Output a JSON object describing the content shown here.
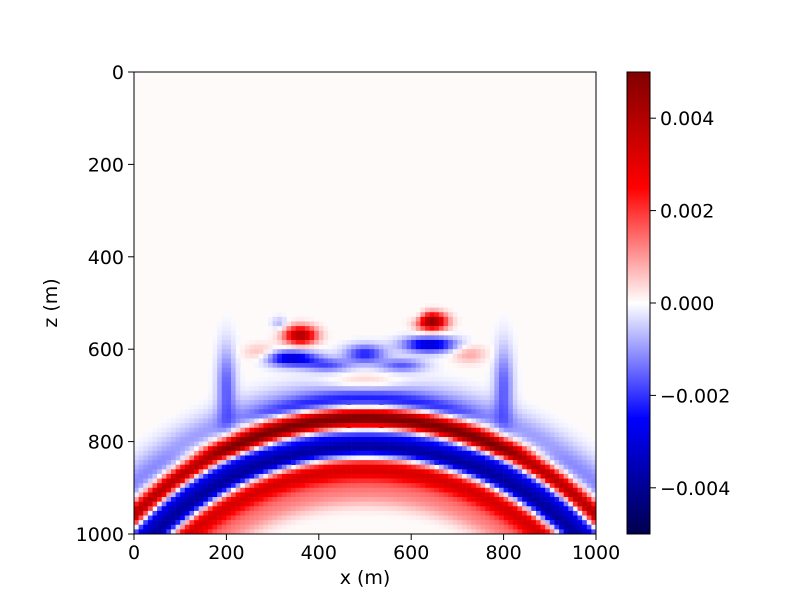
{
  "chart_data": {
    "type": "heatmap",
    "title": "",
    "xlabel": "x (m)",
    "ylabel": "z (m)",
    "xlim": [
      0,
      1000
    ],
    "zlim": [
      0,
      1000
    ],
    "z_axis_inverted": true,
    "x_ticks": [
      0,
      200,
      400,
      600,
      800,
      1000
    ],
    "x_tick_labels": [
      "0",
      "200",
      "400",
      "600",
      "800",
      "1000"
    ],
    "z_ticks": [
      0,
      200,
      400,
      600,
      800,
      1000
    ],
    "z_tick_labels": [
      "0",
      "200",
      "400",
      "600",
      "800",
      "1000"
    ],
    "colormap": "seismic",
    "colormap_stops": [
      "#00004d",
      "#0000ff",
      "#ffffff",
      "#ff0000",
      "#800000"
    ],
    "vlim": [
      -0.005,
      0.005
    ],
    "colorbar_ticks": [
      0.004,
      0.002,
      0.0,
      -0.002,
      -0.004
    ],
    "colorbar_tick_labels": [
      "0.004",
      "0.002",
      "0.000",
      "−0.002",
      "−0.004"
    ],
    "grid": false,
    "background_value": 0.0,
    "features": [
      {
        "name": "outer precursor arc",
        "kind": "arc",
        "cx": 500,
        "cz": 1450,
        "r": 745,
        "width": 30,
        "amp": -0.0012,
        "side": "both"
      },
      {
        "name": "main positive front",
        "kind": "arc",
        "cx": 500,
        "cz": 1450,
        "r": 700,
        "width": 16,
        "amp": 0.0045,
        "side": "both"
      },
      {
        "name": "inner negative front",
        "kind": "arc",
        "cx": 500,
        "cz": 1450,
        "r": 668,
        "width": 14,
        "amp": -0.0026,
        "side": "both"
      },
      {
        "name": "wide positive trail",
        "kind": "arc",
        "cx": 500,
        "cz": 1450,
        "r": 630,
        "width": 20,
        "amp": 0.0007,
        "side": "both"
      },
      {
        "name": "lower blue dome",
        "kind": "arc",
        "cx": 500,
        "cz": 1450,
        "r": 635,
        "width": 16,
        "amp": -0.0045,
        "zmin": 800
      },
      {
        "name": "lower red dome",
        "kind": "arc",
        "cx": 500,
        "cz": 1450,
        "r": 590,
        "width": 20,
        "amp": 0.0032,
        "zmin": 830
      },
      {
        "name": "inner pink dome",
        "kind": "arc",
        "cx": 500,
        "cz": 1450,
        "r": 540,
        "width": 22,
        "amp": 0.0011,
        "zmin": 880
      },
      {
        "name": "upper pink band",
        "kind": "arc",
        "cx": 500,
        "cz": 1450,
        "r": 700,
        "width": 28,
        "amp": 0.0012,
        "zmin": 740,
        "zmax": 810
      },
      {
        "name": "upper blue band",
        "kind": "arc",
        "cx": 500,
        "cz": 1350,
        "r": 640,
        "width": 14,
        "amp": -0.0012,
        "zmin": 690,
        "zmax": 730
      },
      {
        "name": "left red blob",
        "kind": "blob",
        "x": 360,
        "z": 570,
        "sx": 24,
        "sz": 14,
        "amp": 0.0042
      },
      {
        "name": "right red blob",
        "kind": "blob",
        "x": 645,
        "z": 540,
        "sx": 22,
        "sz": 13,
        "amp": 0.0048
      },
      {
        "name": "left blue diagonal",
        "kind": "blob",
        "x": 340,
        "z": 620,
        "sx": 40,
        "sz": 12,
        "amp": -0.0032
      },
      {
        "name": "right blue diagonal",
        "kind": "blob",
        "x": 640,
        "z": 590,
        "sx": 40,
        "sz": 12,
        "amp": -0.0032
      },
      {
        "name": "center blue blob",
        "kind": "blob",
        "x": 500,
        "z": 610,
        "sx": 30,
        "sz": 14,
        "amp": -0.0022
      },
      {
        "name": "center blue arch left",
        "kind": "blob",
        "x": 420,
        "z": 635,
        "sx": 35,
        "sz": 10,
        "amp": -0.0016
      },
      {
        "name": "center blue arch right",
        "kind": "blob",
        "x": 580,
        "z": 635,
        "sx": 35,
        "sz": 10,
        "amp": -0.0016
      },
      {
        "name": "left pink wedge",
        "kind": "blob",
        "x": 275,
        "z": 610,
        "sx": 26,
        "sz": 14,
        "amp": 0.0009
      },
      {
        "name": "right pink wedge",
        "kind": "blob",
        "x": 725,
        "z": 610,
        "sx": 26,
        "sz": 14,
        "amp": 0.0009
      },
      {
        "name": "center pink blob",
        "kind": "blob",
        "x": 500,
        "z": 670,
        "sx": 60,
        "sz": 14,
        "amp": 0.0009
      },
      {
        "name": "left upper blue tip",
        "kind": "blob",
        "x": 315,
        "z": 545,
        "sx": 12,
        "sz": 10,
        "amp": -0.0008
      },
      {
        "name": "right upper blue tip",
        "kind": "blob",
        "x": 615,
        "z": 530,
        "sx": 12,
        "sz": 10,
        "amp": -0.0008
      },
      {
        "name": "left inner blue hook",
        "kind": "blob",
        "x": 200,
        "z": 680,
        "sx": 14,
        "sz": 60,
        "amp": -0.0016
      },
      {
        "name": "right inner blue hook",
        "kind": "blob",
        "x": 800,
        "z": 680,
        "sx": 14,
        "sz": 60,
        "amp": -0.0016
      }
    ]
  }
}
